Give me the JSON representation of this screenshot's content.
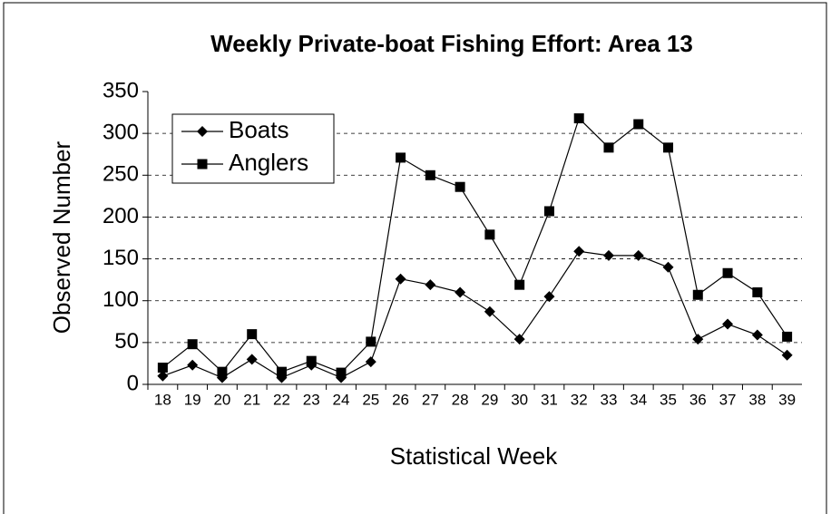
{
  "chart_data": {
    "type": "line",
    "title": "Weekly Private-boat Fishing Effort: Area 13",
    "x_label": "Statistical Week",
    "y_label": "Observed Number",
    "categories": [
      "18",
      "19",
      "20",
      "21",
      "22",
      "23",
      "24",
      "25",
      "26",
      "27",
      "28",
      "29",
      "30",
      "31",
      "32",
      "33",
      "34",
      "35",
      "36",
      "37",
      "38",
      "39"
    ],
    "series": [
      {
        "name": "Boats",
        "color": "#000000",
        "marker": "diamond",
        "values": [
          10,
          23,
          8,
          30,
          8,
          23,
          8,
          27,
          126,
          119,
          110,
          87,
          54,
          105,
          159,
          154,
          154,
          140,
          54,
          72,
          59,
          35
        ]
      },
      {
        "name": "Anglers",
        "color": "#000000",
        "marker": "square",
        "values": [
          20,
          48,
          15,
          60,
          15,
          28,
          14,
          51,
          271,
          250,
          236,
          179,
          119,
          207,
          318,
          283,
          311,
          283,
          107,
          133,
          110,
          57
        ]
      }
    ],
    "ylim": [
      0,
      350
    ],
    "yticks": [
      0,
      50,
      100,
      150,
      200,
      250,
      300,
      350
    ],
    "grid": true,
    "legend": "upper left"
  }
}
